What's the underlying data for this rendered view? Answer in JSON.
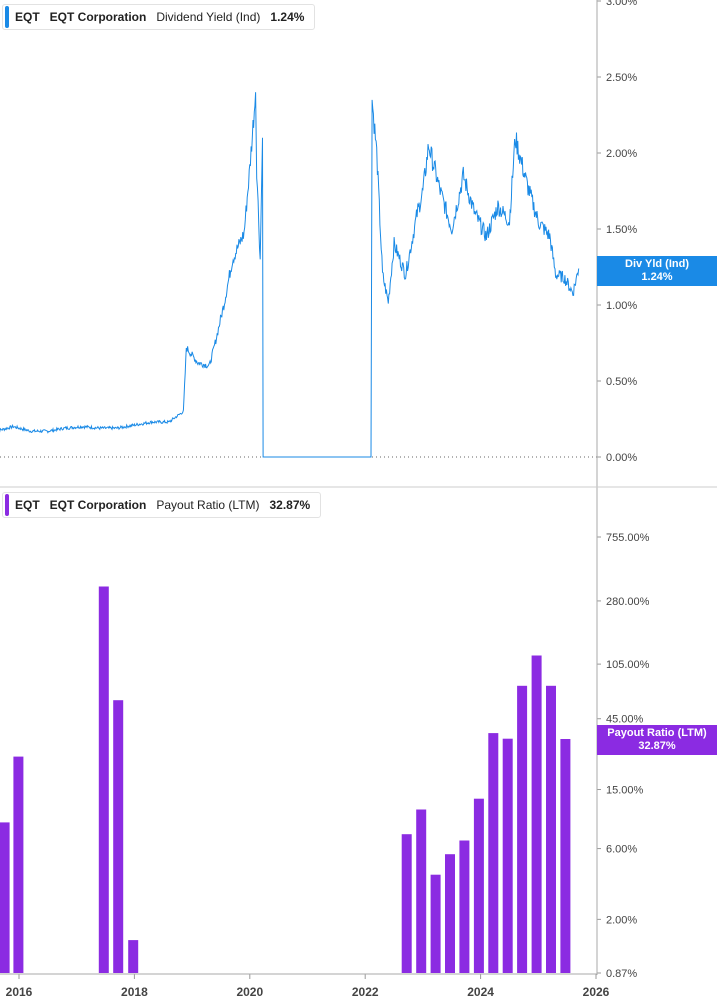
{
  "chart_data": [
    {
      "type": "line",
      "legend": {
        "ticker": "EQT",
        "company": "EQT Corporation",
        "metric": "Dividend Yield (Ind)",
        "value": "1.24%"
      },
      "tag": {
        "label": "Div Yld (Ind)",
        "value": "1.24%"
      },
      "color": "#1a8ae6",
      "y_ticks": [
        "0.00%",
        "0.50%",
        "1.00%",
        "1.50%",
        "2.00%",
        "2.50%",
        "3.00%"
      ],
      "ylim": [
        0,
        3.0
      ],
      "series": [
        {
          "x": [
            2015.6,
            2015.9,
            2016.2,
            2016.5,
            2016.8,
            2017.1,
            2017.4,
            2017.7,
            2018.0,
            2018.3,
            2018.6,
            2018.85,
            2018.9,
            2019.1,
            2019.3,
            2019.4,
            2019.55,
            2019.7,
            2019.9,
            2020.0,
            2020.1,
            2020.12,
            2020.18,
            2020.22,
            2020.23,
            2022.1,
            2022.12,
            2022.2,
            2022.3,
            2022.4,
            2022.5,
            2022.7,
            2022.9,
            2023.0,
            2023.1,
            2023.3,
            2023.5,
            2023.7,
            2023.9,
            2024.1,
            2024.3,
            2024.5,
            2024.6,
            2024.8,
            2025.0,
            2025.2,
            2025.3,
            2025.45,
            2025.6,
            2025.7
          ],
          "y": [
            0.17,
            0.2,
            0.17,
            0.17,
            0.19,
            0.2,
            0.19,
            0.19,
            0.21,
            0.23,
            0.23,
            0.3,
            0.72,
            0.62,
            0.6,
            0.75,
            1.0,
            1.3,
            1.47,
            1.9,
            2.4,
            1.9,
            1.3,
            2.1,
            0,
            0,
            2.35,
            2.0,
            1.2,
            1.02,
            1.4,
            1.2,
            1.6,
            1.75,
            2.05,
            1.75,
            1.5,
            1.85,
            1.6,
            1.45,
            1.65,
            1.55,
            2.1,
            1.8,
            1.55,
            1.45,
            1.2,
            1.18,
            1.08,
            1.24
          ]
        }
      ]
    },
    {
      "type": "bar",
      "legend": {
        "ticker": "EQT",
        "company": "EQT Corporation",
        "metric": "Payout Ratio (LTM)",
        "value": "32.87%"
      },
      "tag": {
        "label": "Payout Ratio (LTM)",
        "value": "32.87%"
      },
      "color": "#8b2be2",
      "y_scale": "log",
      "y_ticks": [
        "0.87%",
        "2.00%",
        "6.00%",
        "15.00%",
        "45.00%",
        "105.00%",
        "280.00%",
        "755.00%"
      ],
      "ylim": [
        0.87,
        755
      ],
      "x_ticks": [
        "2016",
        "2018",
        "2020",
        "2022",
        "2024",
        "2026"
      ],
      "x": [
        2015.75,
        2015.99,
        2017.47,
        2017.72,
        2017.98,
        2022.72,
        2022.97,
        2023.22,
        2023.47,
        2023.72,
        2023.97,
        2024.22,
        2024.47,
        2024.72,
        2024.97,
        2025.22,
        2025.47
      ],
      "values": [
        9.0,
        25.0,
        350.0,
        60.0,
        1.45,
        7.5,
        11.0,
        4.0,
        5.5,
        6.8,
        13.0,
        36.0,
        33.0,
        75.0,
        120.0,
        75.0,
        32.87
      ]
    }
  ]
}
